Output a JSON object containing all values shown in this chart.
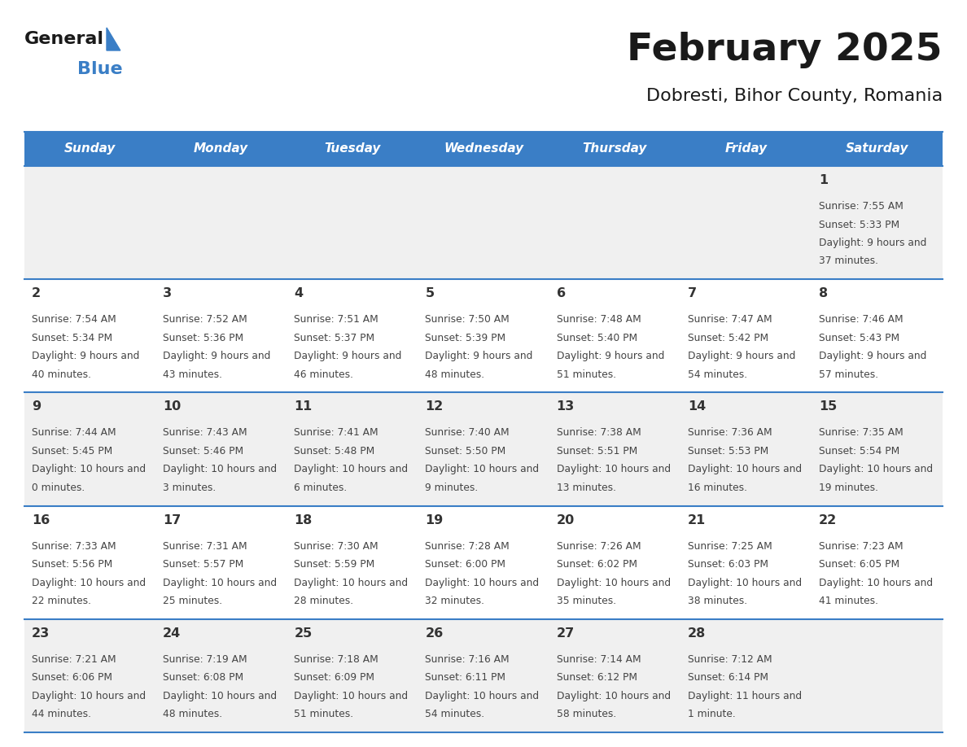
{
  "title": "February 2025",
  "subtitle": "Dobresti, Bihor County, Romania",
  "days_of_week": [
    "Sunday",
    "Monday",
    "Tuesday",
    "Wednesday",
    "Thursday",
    "Friday",
    "Saturday"
  ],
  "header_bg": "#3A7EC6",
  "header_text": "#FFFFFF",
  "cell_bg_white": "#FFFFFF",
  "cell_bg_gray": "#F0F0F0",
  "row_border_color": "#3A7EC6",
  "day_num_color": "#333333",
  "text_color": "#444444",
  "calendar_data": [
    {
      "day": 1,
      "col": 6,
      "row": 0,
      "sunrise": "7:55 AM",
      "sunset": "5:33 PM",
      "daylight": "9 hours and 37 minutes"
    },
    {
      "day": 2,
      "col": 0,
      "row": 1,
      "sunrise": "7:54 AM",
      "sunset": "5:34 PM",
      "daylight": "9 hours and 40 minutes"
    },
    {
      "day": 3,
      "col": 1,
      "row": 1,
      "sunrise": "7:52 AM",
      "sunset": "5:36 PM",
      "daylight": "9 hours and 43 minutes"
    },
    {
      "day": 4,
      "col": 2,
      "row": 1,
      "sunrise": "7:51 AM",
      "sunset": "5:37 PM",
      "daylight": "9 hours and 46 minutes"
    },
    {
      "day": 5,
      "col": 3,
      "row": 1,
      "sunrise": "7:50 AM",
      "sunset": "5:39 PM",
      "daylight": "9 hours and 48 minutes"
    },
    {
      "day": 6,
      "col": 4,
      "row": 1,
      "sunrise": "7:48 AM",
      "sunset": "5:40 PM",
      "daylight": "9 hours and 51 minutes"
    },
    {
      "day": 7,
      "col": 5,
      "row": 1,
      "sunrise": "7:47 AM",
      "sunset": "5:42 PM",
      "daylight": "9 hours and 54 minutes"
    },
    {
      "day": 8,
      "col": 6,
      "row": 1,
      "sunrise": "7:46 AM",
      "sunset": "5:43 PM",
      "daylight": "9 hours and 57 minutes"
    },
    {
      "day": 9,
      "col": 0,
      "row": 2,
      "sunrise": "7:44 AM",
      "sunset": "5:45 PM",
      "daylight": "10 hours and 0 minutes"
    },
    {
      "day": 10,
      "col": 1,
      "row": 2,
      "sunrise": "7:43 AM",
      "sunset": "5:46 PM",
      "daylight": "10 hours and 3 minutes"
    },
    {
      "day": 11,
      "col": 2,
      "row": 2,
      "sunrise": "7:41 AM",
      "sunset": "5:48 PM",
      "daylight": "10 hours and 6 minutes"
    },
    {
      "day": 12,
      "col": 3,
      "row": 2,
      "sunrise": "7:40 AM",
      "sunset": "5:50 PM",
      "daylight": "10 hours and 9 minutes"
    },
    {
      "day": 13,
      "col": 4,
      "row": 2,
      "sunrise": "7:38 AM",
      "sunset": "5:51 PM",
      "daylight": "10 hours and 13 minutes"
    },
    {
      "day": 14,
      "col": 5,
      "row": 2,
      "sunrise": "7:36 AM",
      "sunset": "5:53 PM",
      "daylight": "10 hours and 16 minutes"
    },
    {
      "day": 15,
      "col": 6,
      "row": 2,
      "sunrise": "7:35 AM",
      "sunset": "5:54 PM",
      "daylight": "10 hours and 19 minutes"
    },
    {
      "day": 16,
      "col": 0,
      "row": 3,
      "sunrise": "7:33 AM",
      "sunset": "5:56 PM",
      "daylight": "10 hours and 22 minutes"
    },
    {
      "day": 17,
      "col": 1,
      "row": 3,
      "sunrise": "7:31 AM",
      "sunset": "5:57 PM",
      "daylight": "10 hours and 25 minutes"
    },
    {
      "day": 18,
      "col": 2,
      "row": 3,
      "sunrise": "7:30 AM",
      "sunset": "5:59 PM",
      "daylight": "10 hours and 28 minutes"
    },
    {
      "day": 19,
      "col": 3,
      "row": 3,
      "sunrise": "7:28 AM",
      "sunset": "6:00 PM",
      "daylight": "10 hours and 32 minutes"
    },
    {
      "day": 20,
      "col": 4,
      "row": 3,
      "sunrise": "7:26 AM",
      "sunset": "6:02 PM",
      "daylight": "10 hours and 35 minutes"
    },
    {
      "day": 21,
      "col": 5,
      "row": 3,
      "sunrise": "7:25 AM",
      "sunset": "6:03 PM",
      "daylight": "10 hours and 38 minutes"
    },
    {
      "day": 22,
      "col": 6,
      "row": 3,
      "sunrise": "7:23 AM",
      "sunset": "6:05 PM",
      "daylight": "10 hours and 41 minutes"
    },
    {
      "day": 23,
      "col": 0,
      "row": 4,
      "sunrise": "7:21 AM",
      "sunset": "6:06 PM",
      "daylight": "10 hours and 44 minutes"
    },
    {
      "day": 24,
      "col": 1,
      "row": 4,
      "sunrise": "7:19 AM",
      "sunset": "6:08 PM",
      "daylight": "10 hours and 48 minutes"
    },
    {
      "day": 25,
      "col": 2,
      "row": 4,
      "sunrise": "7:18 AM",
      "sunset": "6:09 PM",
      "daylight": "10 hours and 51 minutes"
    },
    {
      "day": 26,
      "col": 3,
      "row": 4,
      "sunrise": "7:16 AM",
      "sunset": "6:11 PM",
      "daylight": "10 hours and 54 minutes"
    },
    {
      "day": 27,
      "col": 4,
      "row": 4,
      "sunrise": "7:14 AM",
      "sunset": "6:12 PM",
      "daylight": "10 hours and 58 minutes"
    },
    {
      "day": 28,
      "col": 5,
      "row": 4,
      "sunrise": "7:12 AM",
      "sunset": "6:14 PM",
      "daylight": "11 hours and 1 minute"
    }
  ],
  "num_rows": 5,
  "num_cols": 7
}
